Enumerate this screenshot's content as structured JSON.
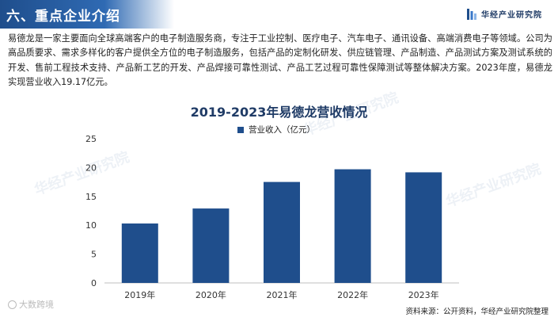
{
  "header": {
    "title": "六、重点企业介绍",
    "brand": "华经产业研究院"
  },
  "intro": "易德龙是一家主要面向全球高端客户的电子制造服务商，专注于工业控制、医疗电子、汽车电子、通讯设备、高端消费电子等领域。公司为高品质要求、需求多样化的客户提供全方位的电子制造服务，包括产品的定制化研发、供应链管理、产品制造、产品测试方案及测试系统的开发、售前工程技术支持、产品新工艺的开发、产品焊接可靠性测试、产品工艺过程可靠性保障测试等整体解决方案。2023年度，易德龙实现营业收入19.17亿元。",
  "chart_data": {
    "type": "bar",
    "title": "2019-2023年易德龙营收情况",
    "categories": [
      "2019年",
      "2020年",
      "2021年",
      "2022年",
      "2023年"
    ],
    "series": [
      {
        "name": "营业收入（亿元）",
        "values": [
          10.3,
          12.9,
          17.5,
          19.7,
          19.17
        ]
      }
    ],
    "ylim": [
      0,
      25
    ],
    "yticks": [
      "0",
      "5",
      "10",
      "15",
      "20",
      "25"
    ],
    "bar_color": "#1f4e8c",
    "legend_position": "top",
    "grid": false
  },
  "source": "资料来源：公开资料，华经产业研究院整理",
  "watermarks": {
    "text": "华经产业研究院",
    "corner": "大数跨境"
  }
}
